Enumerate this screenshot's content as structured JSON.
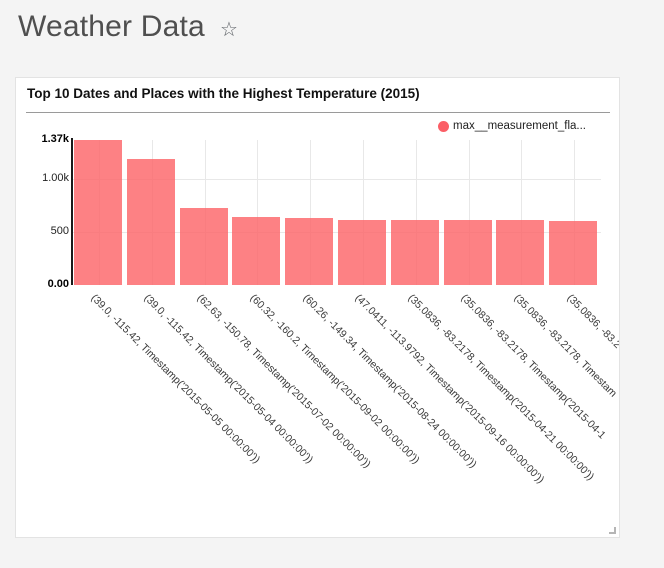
{
  "page": {
    "title": "Weather Data",
    "star_icon": "☆",
    "background_color": "#f4f4f4"
  },
  "card": {
    "title": "Top 10 Dates and Places with the Highest Temperature (2015)",
    "legend_label": "max__measurement_fla...",
    "legend_color": "#fb5e66"
  },
  "chart_data": {
    "type": "bar",
    "title": "Top 10 Dates and Places with the Highest Temperature (2015)",
    "legend": [
      "max__measurement_fla..."
    ],
    "legend_position": "top-right",
    "bar_color": "#fc6165",
    "bar_opacity": 0.8,
    "grid": "light",
    "x_label_rotation_deg": 45,
    "ylim": [
      0,
      1370
    ],
    "y_ticks": [
      {
        "label": "1.37k",
        "value": 1370,
        "bold": true,
        "gridline": false
      },
      {
        "label": "1.00k",
        "value": 1000,
        "bold": false,
        "gridline": true
      },
      {
        "label": "500",
        "value": 500,
        "bold": false,
        "gridline": true
      },
      {
        "label": "0.00",
        "value": 0,
        "bold": true,
        "gridline": false
      }
    ],
    "categories": [
      "(39.0, -115.42, Timestamp('2015-05-05 00:00:00'))",
      "(39.0, -115.42, Timestamp('2015-05-04 00:00:00'))",
      "(62.63, -150.78, Timestamp('2015-07-02 00:00:00'))",
      "(60.32, -160.2, Timestamp('2015-09-02 00:00:00'))",
      "(60.26, -149.34, Timestamp('2015-08-24 00:00:00'))",
      "(47.0411, -113.9792, Timestamp('2015-09-16 00:00:00'))",
      "(35.0836, -83.2178, Timestamp('2015-04-21 00:00:00'))",
      "(35.0836, -83.2178, Timestamp('2015-04-1",
      "(35.0836, -83.2178, Timestam",
      "(35.0836, -83.2"
    ],
    "values": [
      1370,
      1190,
      732,
      647,
      637,
      616,
      614,
      612,
      610,
      601
    ]
  }
}
